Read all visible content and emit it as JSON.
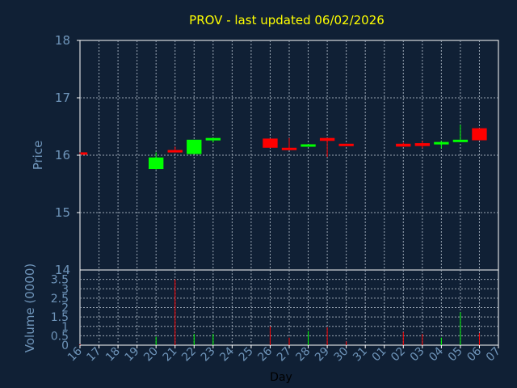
{
  "chart_data": {
    "type": "candlestick",
    "title": "PROV - last updated 06/02/2026",
    "price_panel": {
      "ylabel": "Price",
      "ylim": [
        14,
        18
      ],
      "yticks": [
        15,
        16,
        17,
        18
      ]
    },
    "volume_panel": {
      "ylabel": "Volume (0000)",
      "ylim": [
        0,
        4
      ],
      "yticks": [
        0,
        0.5,
        1,
        1.5,
        2,
        2.5,
        3,
        3.5,
        4
      ],
      "ytick_labels": [
        "0",
        "0.5",
        "1",
        "1.5",
        "2",
        "2.5",
        "3",
        "3.5",
        "4"
      ]
    },
    "xlabel": "Day",
    "x_ticks": [
      "16",
      "17",
      "18",
      "19",
      "20",
      "21",
      "22",
      "23",
      "24",
      "25",
      "26",
      "27",
      "28",
      "29",
      "30",
      "31",
      "01",
      "02",
      "03",
      "04",
      "05",
      "06",
      "07"
    ],
    "grid": true,
    "colors": {
      "background": "#102035",
      "plot_border": "#ffffff",
      "grid": "#9aa6b4",
      "up": "#00ff00",
      "down": "#ff0000",
      "title": "#ffff00",
      "axis_text": "#6f95ba",
      "xlabel": "#000000"
    },
    "candles": [
      {
        "day": "16",
        "open": 16.05,
        "close": 16.02,
        "high": 16.05,
        "low": 16.02,
        "volume": 0.05
      },
      {
        "day": "20",
        "open": 15.76,
        "close": 15.96,
        "high": 16.05,
        "low": 15.75,
        "volume": 0.45
      },
      {
        "day": "21",
        "open": 16.09,
        "close": 16.07,
        "high": 16.15,
        "low": 16.05,
        "volume": 3.5
      },
      {
        "day": "22",
        "open": 16.02,
        "close": 16.27,
        "high": 16.27,
        "low": 16.02,
        "volume": 0.6
      },
      {
        "day": "23",
        "open": 16.27,
        "close": 16.3,
        "high": 16.3,
        "low": 16.22,
        "volume": 0.6
      },
      {
        "day": "26",
        "open": 16.29,
        "close": 16.13,
        "high": 16.29,
        "low": 16.13,
        "volume": 1.0
      },
      {
        "day": "27",
        "open": 16.13,
        "close": 16.12,
        "high": 16.3,
        "low": 16.1,
        "volume": 0.4
      },
      {
        "day": "28",
        "open": 16.16,
        "close": 16.19,
        "high": 16.19,
        "low": 16.16,
        "volume": 0.75
      },
      {
        "day": "29",
        "open": 16.3,
        "close": 16.25,
        "high": 16.3,
        "low": 15.97,
        "volume": 0.95
      },
      {
        "day": "30",
        "open": 16.2,
        "close": 16.17,
        "high": 16.2,
        "low": 16.16,
        "volume": 0.2
      },
      {
        "day": "02",
        "open": 16.2,
        "close": 16.15,
        "high": 16.22,
        "low": 16.15,
        "volume": 0.7
      },
      {
        "day": "03",
        "open": 16.21,
        "close": 16.16,
        "high": 16.25,
        "low": 16.12,
        "volume": 0.6
      },
      {
        "day": "04",
        "open": 16.2,
        "close": 16.23,
        "high": 16.25,
        "low": 16.12,
        "volume": 0.4
      },
      {
        "day": "05",
        "open": 16.25,
        "close": 16.27,
        "high": 16.53,
        "low": 16.24,
        "volume": 1.75
      },
      {
        "day": "06",
        "open": 16.47,
        "close": 16.26,
        "high": 16.47,
        "low": 16.26,
        "volume": 0.65
      }
    ]
  }
}
